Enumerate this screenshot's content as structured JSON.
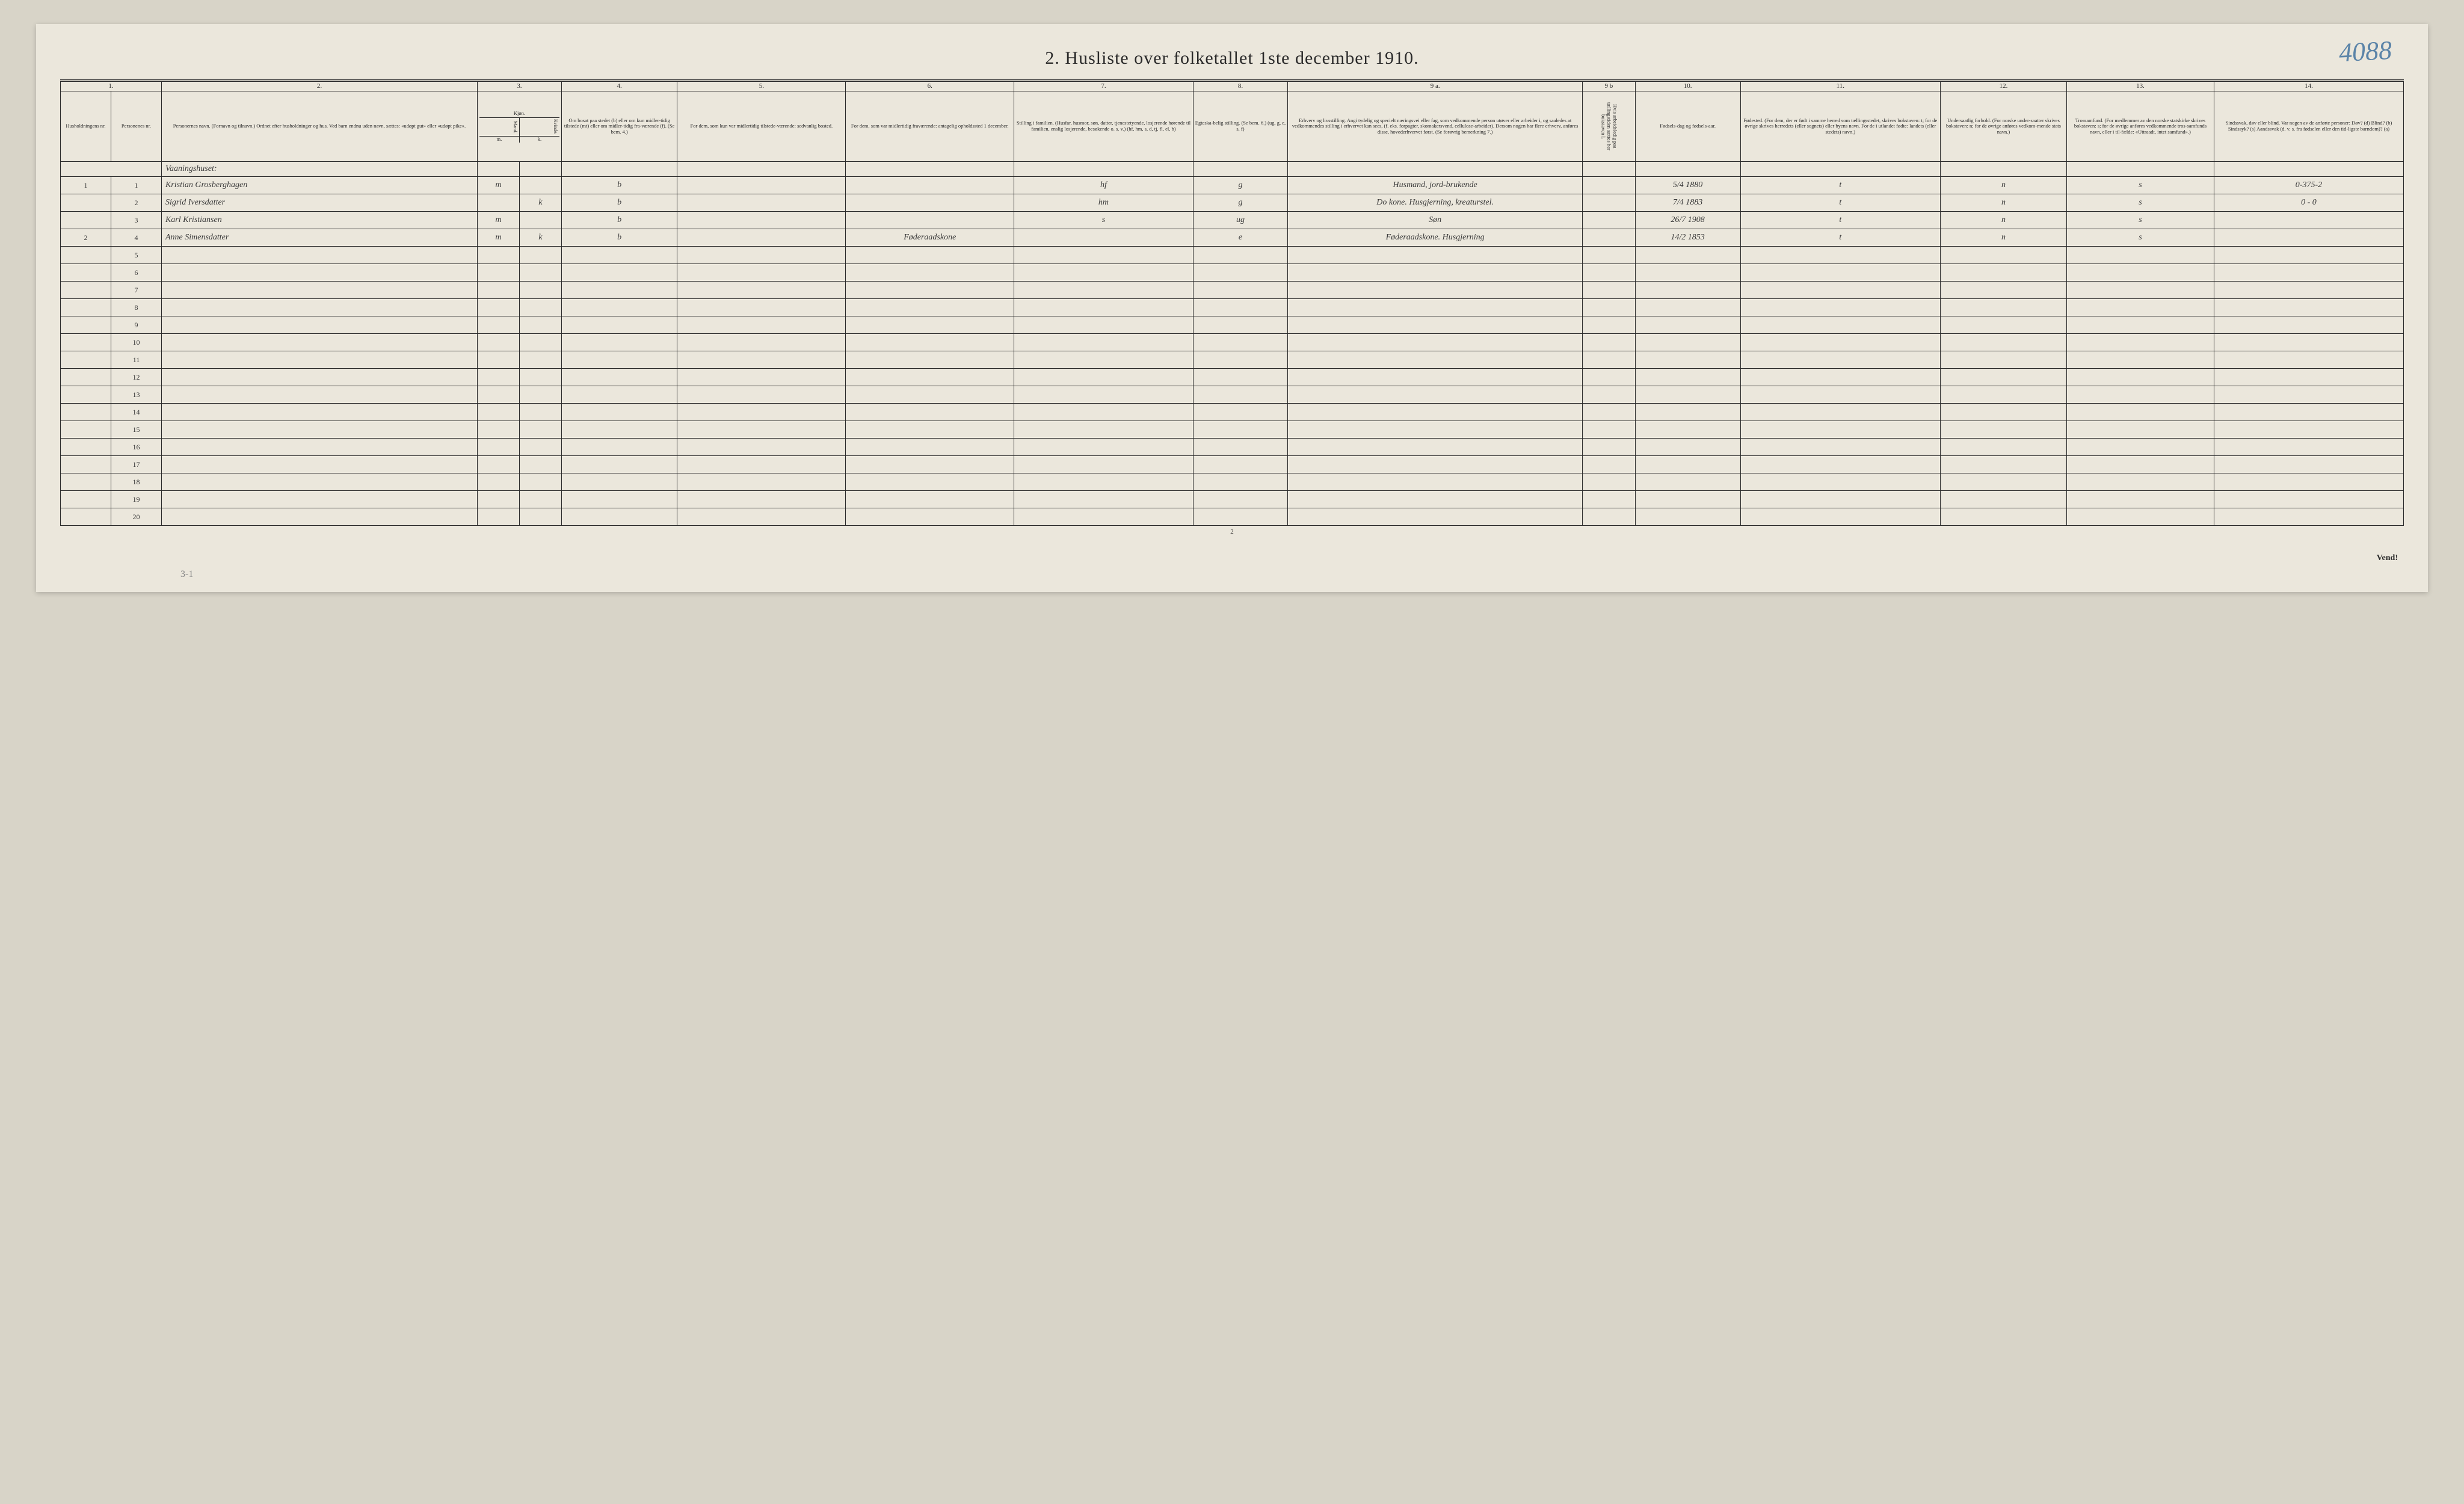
{
  "annotation_topright": "4088",
  "title": "2.  Husliste over folketallet 1ste december 1910.",
  "columns_numbers": [
    "1.",
    "",
    "2.",
    "3.",
    "4.",
    "5.",
    "6.",
    "7.",
    "8.",
    "9 a.",
    "9 b",
    "10.",
    "11.",
    "12.",
    "13.",
    "14."
  ],
  "columns_widths_pct": [
    2.4,
    2.4,
    15,
    2,
    2,
    5.5,
    8,
    8,
    8.5,
    4.5,
    14,
    2.5,
    5,
    9.5,
    6,
    7,
    9
  ],
  "headers": {
    "c1": "Husholdningens nr.",
    "c1b": "Personenes nr.",
    "c2": "Personernes navn.\n(Fornavn og tilnavn.)\nOrdnet efter husholdninger og hus.\nVed barn endnu uden navn, sættes: «udøpt gut» eller «udøpt pike».",
    "c3": "Kjøn.",
    "c3_sub": [
      "Mand.",
      "Kvinde."
    ],
    "c3_mk": [
      "m.",
      "k."
    ],
    "c4": "Om bosat paa stedet (b) eller om kun midler-tidig tilstede (mt) eller om midler-tidig fra-værende (f).\n(Se bem. 4.)",
    "c5": "For dem, som kun var midlertidig tilstede-værende:\n\nsedvanlig bosted.",
    "c6": "For dem, som var midlertidig fraværende:\n\nantagelig opholdssted 1 december.",
    "c7": "Stilling i familien.\n(Husfar, husmor, søn, datter, tjenestetyende, losjerende hørende til familien, enslig losjerende, besøkende o. s. v.)\n(hf, hm, s, d, tj, fl, el, b)",
    "c8": "Egteska-belig stilling.\n(Se bem. 6.)\n(ug, g, e, s, f)",
    "c9a": "Erhverv og livsstilling.\nAngi tydelig og specielt næringsvei eller fag, som vedkommende person utøver eller arbeider i, og saaledes at vedkommendes stilling i erhvervet kan sees, (f. eks. forpagter, skomakersvend, cellulose-arbeider). Dersom nogen har flere erhverv, anføres disse, hovederhvervet først.\n(Se forøvrig bemerkning 7.)",
    "c9b": "Hvis arbeidsledig paa tællingstiden sættes her bokstaven l.",
    "c10": "Fødsels-dag og fødsels-aar.",
    "c11": "Fødested.\n(For dem, der er født i samme herred som tællingsstedet, skrives bokstaven: t; for de øvrige skrives herredets (eller sognets) eller byens navn. For de i utlandet fødte: landets (eller stedets) navn.)",
    "c12": "Undersaatlig forhold.\n(For norske under-saatter skrives bokstaven: n; for de øvrige anføres vedkom-mende stats navn.)",
    "c13": "Trossamfund.\n(For medlemmer av den norske statskirke skrives bokstaven: s; for de øvrige anføres vedkommende tros-samfunds navn, eller i til-fælde: «Uttraadt, intet samfund».)",
    "c14": "Sindssvak, døv eller blind.\nVar nogen av de anførte personer:\nDøv? (d)\nBlind? (b)\nSindssyk? (s)\nAandssvak (d. v. s. fra fødselen eller den tid-ligste barndom)? (a)"
  },
  "section_label": "Vaaningshuset:",
  "rows": [
    {
      "hh": "1",
      "pn": "1",
      "name": "Kristian Grosberghagen",
      "sex_m": "m",
      "sex_k": "",
      "bosat": "b",
      "c5": "",
      "c6": "",
      "stilling": "hf",
      "egt": "g",
      "erhverv": "Husmand, jord-brukende",
      "c9b": "",
      "fodsel": "5/4 1880",
      "fodested": "t",
      "under": "n",
      "tros": "s",
      "c14": "0-375-2"
    },
    {
      "hh": "",
      "pn": "2",
      "name": "Sigrid Iversdatter",
      "sex_m": "",
      "sex_k": "k",
      "bosat": "b",
      "c5": "",
      "c6": "",
      "stilling": "hm",
      "egt": "g",
      "erhverv": "Do kone. Husgjerning, kreaturstel.",
      "c9b": "",
      "fodsel": "7/4 1883",
      "fodested": "t",
      "under": "n",
      "tros": "s",
      "c14": "0 - 0"
    },
    {
      "hh": "",
      "pn": "3",
      "name": "Karl Kristiansen",
      "sex_m": "m",
      "sex_k": "",
      "bosat": "b",
      "c5": "",
      "c6": "",
      "stilling": "s",
      "egt": "ug",
      "erhverv": "Søn",
      "c9b": "",
      "fodsel": "26/7 1908",
      "fodested": "t",
      "under": "n",
      "tros": "s",
      "c14": ""
    },
    {
      "hh": "2",
      "pn": "4",
      "name": "Anne Simensdatter",
      "sex_m": "m",
      "sex_k": "k",
      "bosat": "b",
      "c5": "",
      "c6": "Føderaadskone",
      "stilling": "",
      "egt": "e",
      "erhverv": "Føderaadskone. Husgjerning",
      "c9b": "",
      "fodsel": "14/2 1853",
      "fodested": "t",
      "under": "n",
      "tros": "s",
      "c14": ""
    }
  ],
  "empty_rows": [
    "5",
    "6",
    "7",
    "8",
    "9",
    "10",
    "11",
    "12",
    "13",
    "14",
    "15",
    "16",
    "17",
    "18",
    "19",
    "20"
  ],
  "page_footer_right": "Vend!",
  "page_num_bottom": "2",
  "bottom_mark": "3-1",
  "colors": {
    "paper": "#ebe7dc",
    "bg": "#d8d4c8",
    "ink": "#2a2a2a",
    "blue_pencil": "#5b84a8"
  }
}
